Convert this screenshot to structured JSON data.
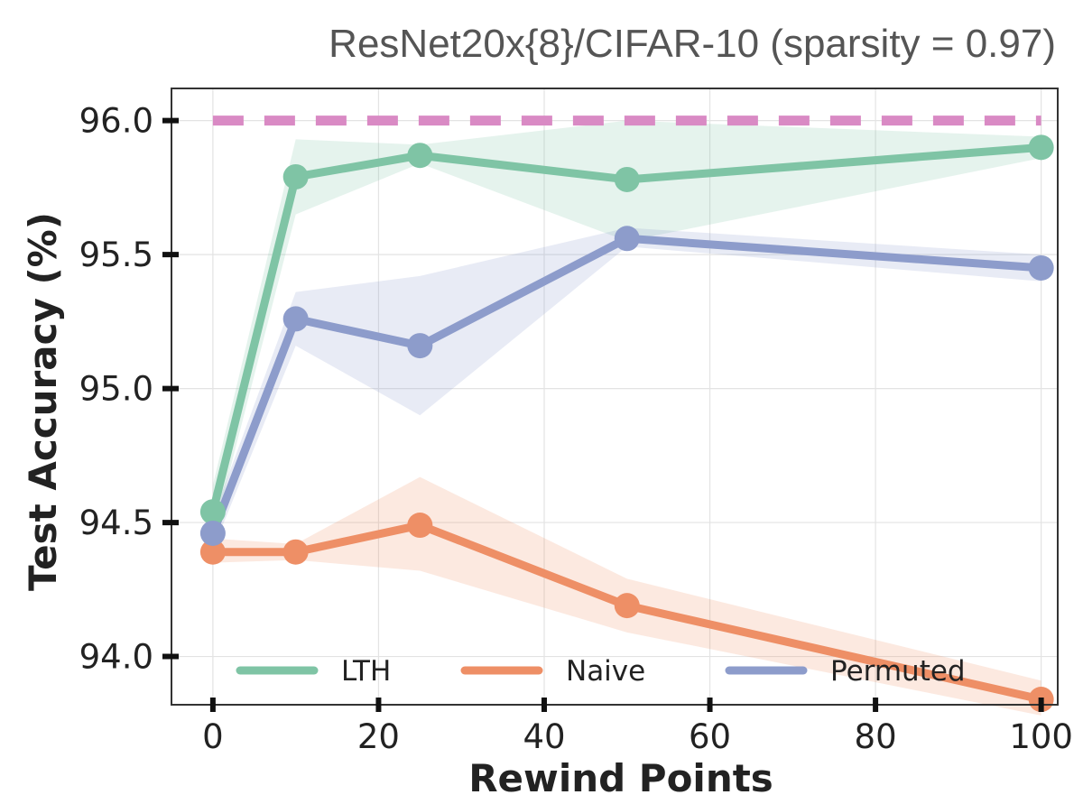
{
  "chart_data": {
    "type": "line",
    "title": "ResNet20x{8}/CIFAR-10 (sparsity = 0.97)",
    "xlabel": "Rewind Points",
    "ylabel": "Test Accuracy (%)",
    "x": [
      0,
      10,
      25,
      50,
      100
    ],
    "xlim": [
      -5,
      102
    ],
    "ylim": [
      93.82,
      96.12
    ],
    "xticks": [
      0,
      20,
      40,
      60,
      80,
      100
    ],
    "xtick_labels": [
      "0",
      "20",
      "40",
      "60",
      "80",
      "100"
    ],
    "yticks": [
      94.0,
      94.5,
      95.0,
      95.5,
      96.0
    ],
    "ytick_labels": [
      "94.0",
      "94.5",
      "95.0",
      "95.5",
      "96.0"
    ],
    "grid": true,
    "legend_position": "bottom",
    "reference_line": {
      "y": 96.0,
      "color": "#d98ac4",
      "style": "dashed"
    },
    "series": [
      {
        "name": "LTH",
        "color": "#7fc4a5",
        "values": [
          94.54,
          95.79,
          95.87,
          95.78,
          95.9
        ],
        "lower": [
          94.45,
          95.65,
          95.84,
          95.55,
          95.86
        ],
        "upper": [
          94.64,
          95.93,
          95.91,
          96.0,
          95.94
        ]
      },
      {
        "name": "Naive",
        "color": "#ee8f66",
        "values": [
          94.39,
          94.39,
          94.49,
          94.19,
          93.84
        ],
        "lower": [
          94.35,
          94.36,
          94.32,
          94.09,
          93.78
        ],
        "upper": [
          94.44,
          94.42,
          94.67,
          94.29,
          93.91
        ]
      },
      {
        "name": "Permuted",
        "color": "#8d9ccb",
        "values": [
          94.46,
          95.26,
          95.16,
          95.56,
          95.45
        ],
        "lower": [
          94.4,
          95.16,
          94.9,
          95.53,
          95.4
        ],
        "upper": [
          94.52,
          95.36,
          95.42,
          95.6,
          95.5
        ]
      }
    ]
  }
}
